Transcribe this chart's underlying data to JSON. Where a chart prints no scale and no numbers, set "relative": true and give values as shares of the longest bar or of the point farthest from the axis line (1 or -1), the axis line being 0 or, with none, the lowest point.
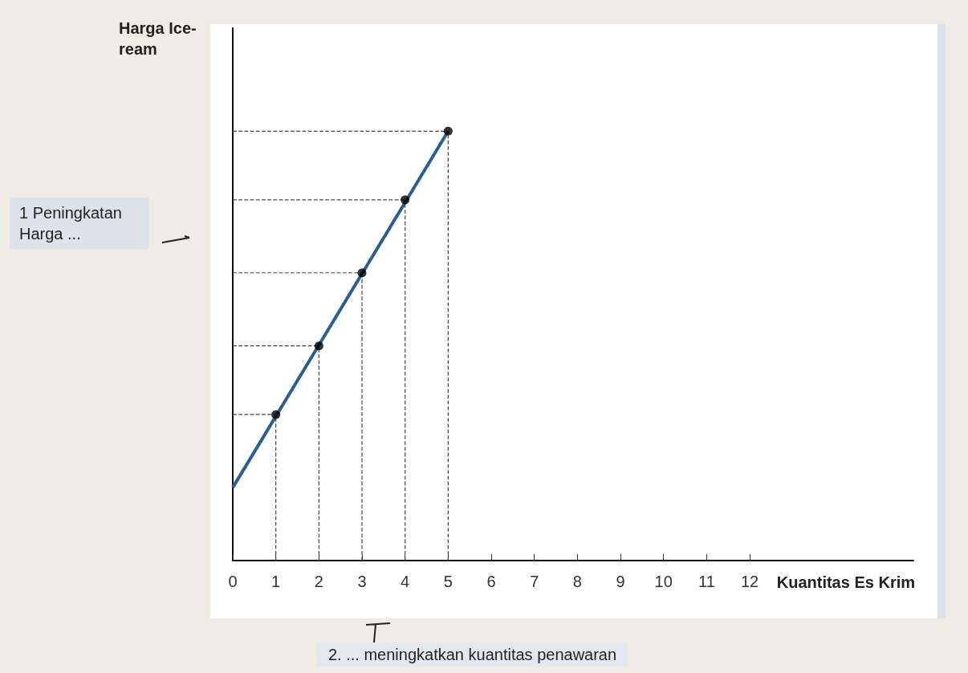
{
  "chart_data": {
    "type": "scatter",
    "relative": true,
    "xlabel": "Kuantitas Es Krim",
    "ylabel": "Harga Ice-ream",
    "annotations": [
      "1 Peningkatan Harga ...",
      "2. ... meningkatkan kuantitas penawaran"
    ],
    "xlim": [
      0,
      15.8
    ],
    "xticks": [
      0,
      1,
      2,
      3,
      4,
      5,
      6,
      7,
      8,
      9,
      10,
      11,
      12
    ],
    "series": [
      {
        "type": "line",
        "color": "#444444",
        "x": [
          1,
          1
        ],
        "values": [
          0,
          0.34
        ],
        "marker": "none",
        "line_style": "dashed"
      },
      {
        "type": "line",
        "color": "#444444",
        "x": [
          2,
          2
        ],
        "values": [
          0,
          0.5
        ],
        "marker": "none",
        "line_style": "dashed"
      },
      {
        "type": "line",
        "color": "#444444",
        "x": [
          3,
          3
        ],
        "values": [
          0,
          0.67
        ],
        "marker": "none",
        "line_style": "dashed"
      },
      {
        "type": "line",
        "color": "#444444",
        "x": [
          4,
          4
        ],
        "values": [
          0,
          0.84
        ],
        "marker": "none",
        "line_style": "dashed"
      },
      {
        "type": "line",
        "color": "#444444",
        "x": [
          5,
          5
        ],
        "values": [
          0,
          1.0
        ],
        "marker": "none",
        "line_style": "dashed"
      },
      {
        "type": "line",
        "color": "#444444",
        "x": [
          0,
          1
        ],
        "values": [
          0.34,
          0.34
        ],
        "marker": "none",
        "line_style": "dashed"
      },
      {
        "type": "line",
        "color": "#444444",
        "x": [
          0,
          2
        ],
        "values": [
          0.5,
          0.5
        ],
        "marker": "none",
        "line_style": "dashed"
      },
      {
        "type": "line",
        "color": "#444444",
        "x": [
          0,
          3
        ],
        "values": [
          0.67,
          0.67
        ],
        "marker": "none",
        "line_style": "dashed"
      },
      {
        "type": "line",
        "color": "#444444",
        "x": [
          0,
          4
        ],
        "values": [
          0.84,
          0.84
        ],
        "marker": "none",
        "line_style": "dashed"
      },
      {
        "type": "line",
        "color": "#444444",
        "x": [
          0,
          5
        ],
        "values": [
          1.0,
          1.0
        ],
        "marker": "none",
        "line_style": "dashed"
      },
      {
        "type": "line",
        "color": "#2a5f8f",
        "x": [
          0,
          5
        ],
        "values": [
          0.17,
          1.0
        ],
        "marker": "none"
      },
      {
        "color": "#000000",
        "x": [
          1,
          2,
          3,
          4,
          5
        ],
        "values": [
          0.34,
          0.5,
          0.67,
          0.84,
          1.0
        ],
        "marker": "circle"
      }
    ]
  }
}
